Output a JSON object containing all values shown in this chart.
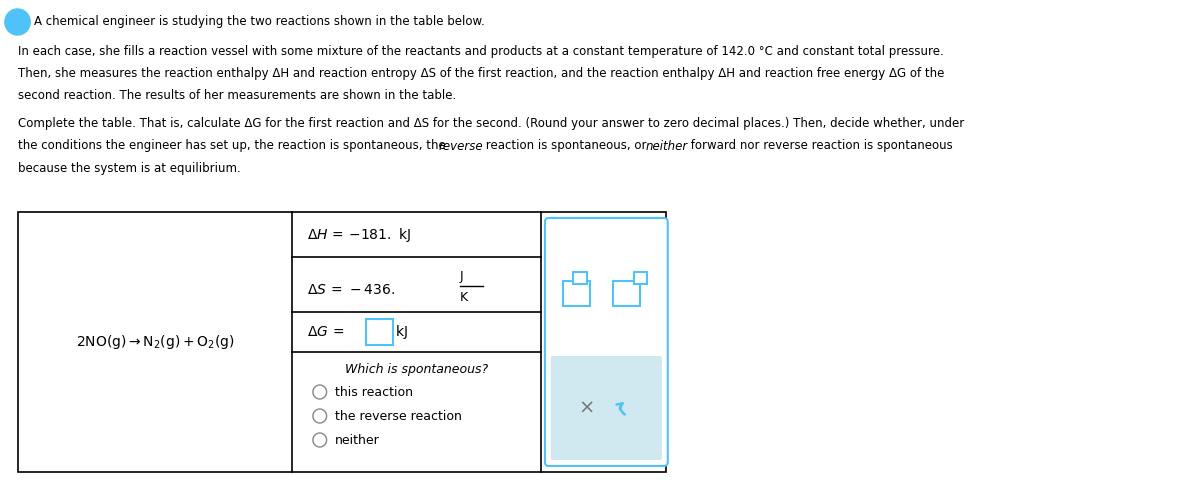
{
  "bg_color": "#ffffff",
  "text_color": "#000000",
  "title_paragraph": "A chemical engineer is studying the two reactions shown in the table below.",
  "para1": "In each case, she fills a reaction vessel with some mixture of the reactants and products at a constant temperature of 142.0 °C and constant total pressure.\nThen, she measures the reaction enthalpy ΔH and reaction entropy ΔS of the first reaction, and the reaction enthalpy ΔH and reaction free energy ΔG of the\nsecond reaction. The results of her measurements are shown in the table.",
  "para2": "Complete the table. That is, calculate ΔG for the first reaction and ΔS for the second. (Round your answer to zero decimal places.) Then, decide whether, under\nthe conditions the engineer has set up, the reaction is spontaneous, the reverse reaction is spontaneous, or neither forward nor reverse reaction is spontaneous\nbecause the system is at equilibrium.",
  "reaction": "2NO(g) → N₂(g) + O₂(g)",
  "dH_label": "ΔH =",
  "dH_value": "−181. kJ",
  "dS_label": "ΔS =",
  "dS_value": "−436.",
  "dS_unit_num": "J",
  "dS_unit_den": "K",
  "dG_label": "ΔG =",
  "dG_unit": "kJ",
  "spontaneous_label": "Which is spontaneous?",
  "option1": "this reaction",
  "option2": "the reverse reaction",
  "option3": "neither",
  "table_border_color": "#000000",
  "input_box_color": "#4fc3f7",
  "panel_border_color": "#4fc3f7",
  "panel_bg_color": "#e8f4f8",
  "panel_btn_bg": "#d0e8f0",
  "icon_color": "#4fc3f7",
  "circle_color": "#888888"
}
